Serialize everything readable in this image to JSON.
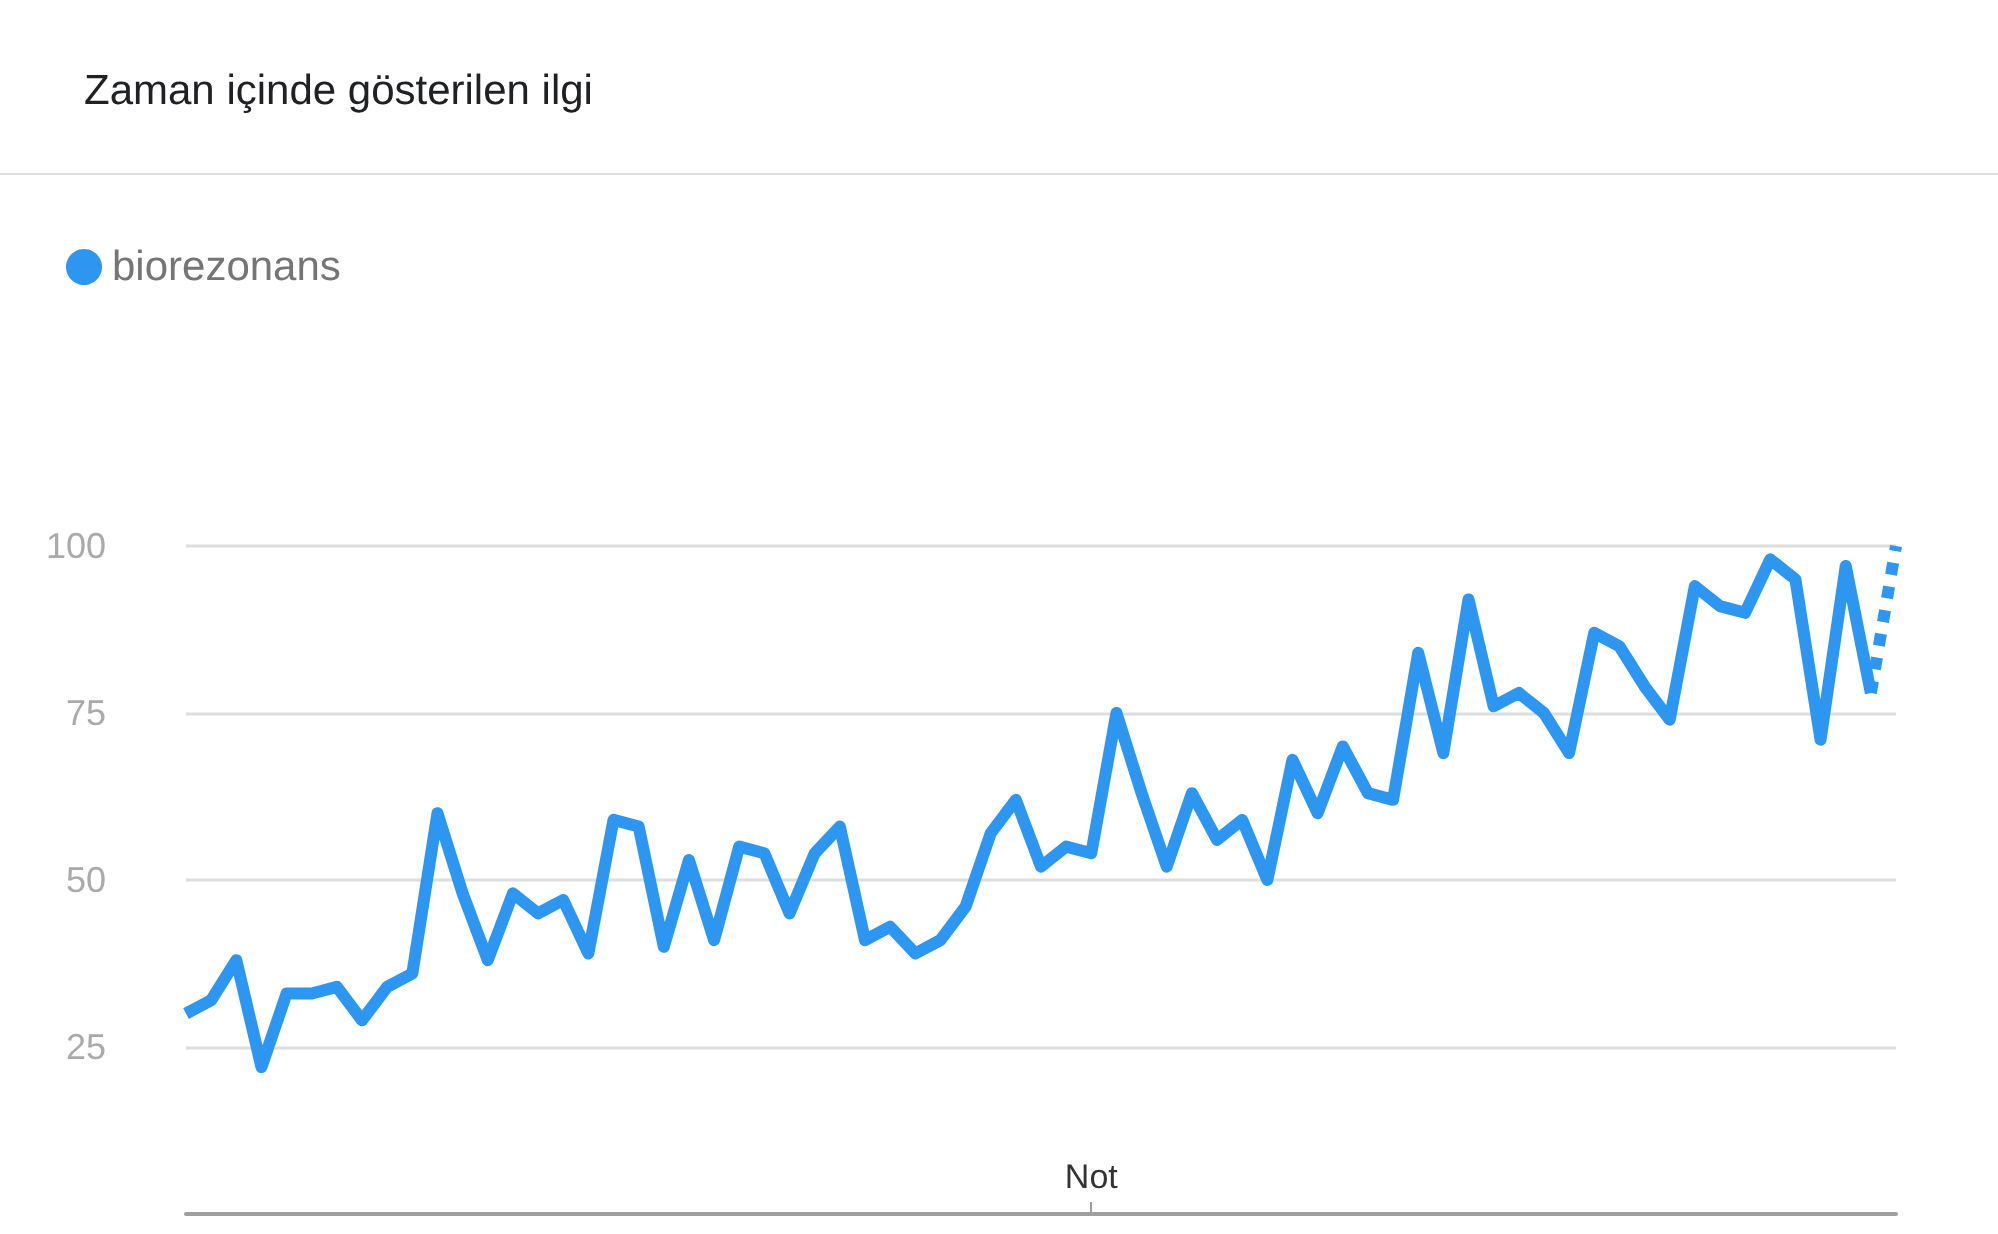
{
  "chart_data": {
    "type": "line",
    "title": "Zaman içinde gösterilen ilgi",
    "categories": [
      null,
      null,
      null,
      null,
      null,
      null,
      null,
      null,
      null,
      null,
      null,
      null,
      null,
      null,
      null,
      null,
      null,
      null,
      null,
      null,
      null,
      null,
      null,
      null,
      null,
      null,
      null,
      null,
      null,
      null,
      null,
      null,
      null,
      null,
      null,
      null,
      "Not",
      null,
      null,
      null,
      null,
      null,
      null,
      null,
      null,
      null,
      null,
      null,
      null,
      null,
      null,
      null,
      null,
      null,
      null,
      null,
      null,
      null,
      null,
      null,
      null,
      null,
      null,
      null,
      null,
      null,
      null,
      null,
      null
    ],
    "series": [
      {
        "name": "biorezonans",
        "color": "#2d96f0",
        "line_style": "solid",
        "values": [
          30,
          32,
          38,
          22,
          33,
          33,
          34,
          29,
          34,
          36,
          60,
          48,
          38,
          48,
          45,
          47,
          39,
          59,
          58,
          40,
          53,
          41,
          55,
          54,
          45,
          54,
          58,
          41,
          43,
          39,
          41,
          46,
          57,
          62,
          52,
          55,
          54,
          75,
          63,
          52,
          63,
          56,
          59,
          50,
          68,
          60,
          70,
          63,
          62,
          84,
          69,
          92,
          76,
          78,
          75,
          69,
          87,
          85,
          79,
          74,
          94,
          91,
          90,
          98,
          95,
          71,
          97,
          78,
          null
        ]
      },
      {
        "color": "#2d96f0",
        "line_style": "dotted",
        "values": [
          null,
          null,
          null,
          null,
          null,
          null,
          null,
          null,
          null,
          null,
          null,
          null,
          null,
          null,
          null,
          null,
          null,
          null,
          null,
          null,
          null,
          null,
          null,
          null,
          null,
          null,
          null,
          null,
          null,
          null,
          null,
          null,
          null,
          null,
          null,
          null,
          null,
          null,
          null,
          null,
          null,
          null,
          null,
          null,
          null,
          null,
          null,
          null,
          null,
          null,
          null,
          null,
          null,
          null,
          null,
          null,
          null,
          null,
          null,
          null,
          null,
          null,
          null,
          null,
          null,
          null,
          null,
          78,
          100
        ]
      }
    ],
    "ylim": [
      0,
      100
    ],
    "yticks": [
      25,
      50,
      75,
      100
    ],
    "grid": "y",
    "legend": "top left",
    "marker": "none"
  }
}
